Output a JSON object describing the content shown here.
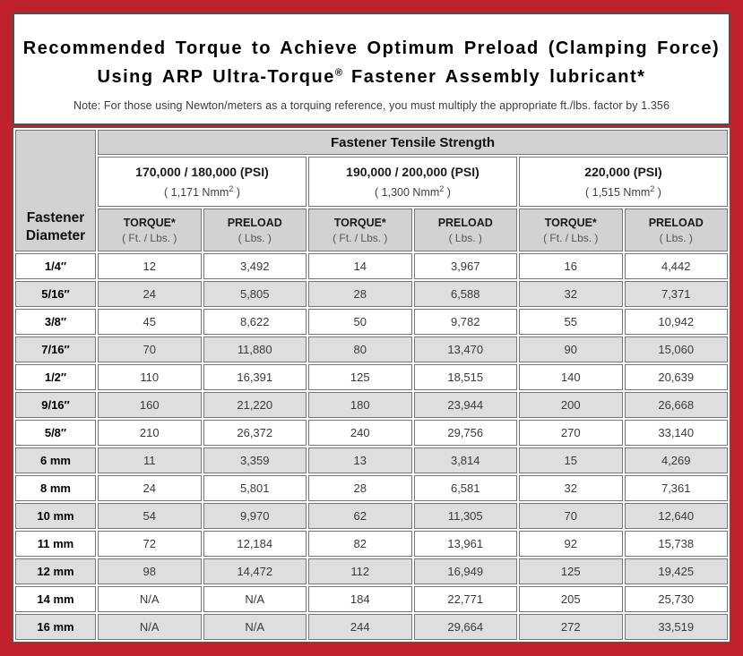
{
  "title": {
    "line1": "Recommended Torque to Achieve Optimum Preload (Clamping Force)",
    "line2_prefix": "Using ARP Ultra-Torque",
    "line2_trademark": "®",
    "line2_suffix": " Fastener Assembly lubricant*",
    "note": "Note: For those using Newton/meters as a torquing reference, you must multiply the appropriate ft./lbs. factor by 1.356"
  },
  "table": {
    "corner_line1": "Fastener",
    "corner_line2": "Diameter",
    "main_header": "Fastener Tensile Strength",
    "strength_groups": [
      {
        "psi": "170,000 / 180,000 (PSI)",
        "nmm_prefix": "( 1,171 Nmm",
        "nmm_sup": "2",
        "nmm_suffix": " )"
      },
      {
        "psi": "190,000 / 200,000 (PSI)",
        "nmm_prefix": "( 1,300 Nmm",
        "nmm_sup": "2",
        "nmm_suffix": " )"
      },
      {
        "psi": "220,000 (PSI)",
        "nmm_prefix": "( 1,515 Nmm",
        "nmm_sup": "2",
        "nmm_suffix": " )"
      }
    ],
    "sub_headers": [
      {
        "label": "TORQUE*",
        "unit": "( Ft. / Lbs. )"
      },
      {
        "label": "PRELOAD",
        "unit": "( Lbs. )"
      },
      {
        "label": "TORQUE*",
        "unit": "( Ft. / Lbs. )"
      },
      {
        "label": "PRELOAD",
        "unit": "( Lbs. )"
      },
      {
        "label": "TORQUE*",
        "unit": "( Ft. / Lbs. )"
      },
      {
        "label": "PRELOAD",
        "unit": "( Lbs. )"
      }
    ],
    "rows": [
      {
        "diameter": "1/4″",
        "values": [
          "12",
          "3,492",
          "14",
          "3,967",
          "16",
          "4,442"
        ]
      },
      {
        "diameter": "5/16″",
        "values": [
          "24",
          "5,805",
          "28",
          "6,588",
          "32",
          "7,371"
        ]
      },
      {
        "diameter": "3/8″",
        "values": [
          "45",
          "8,622",
          "50",
          "9,782",
          "55",
          "10,942"
        ]
      },
      {
        "diameter": "7/16″",
        "values": [
          "70",
          "11,880",
          "80",
          "13,470",
          "90",
          "15,060"
        ]
      },
      {
        "diameter": "1/2″",
        "values": [
          "110",
          "16,391",
          "125",
          "18,515",
          "140",
          "20,639"
        ]
      },
      {
        "diameter": "9/16″",
        "values": [
          "160",
          "21,220",
          "180",
          "23,944",
          "200",
          "26,668"
        ]
      },
      {
        "diameter": "5/8″",
        "values": [
          "210",
          "26,372",
          "240",
          "29,756",
          "270",
          "33,140"
        ]
      },
      {
        "diameter": "6 mm",
        "values": [
          "11",
          "3,359",
          "13",
          "3,814",
          "15",
          "4,269"
        ]
      },
      {
        "diameter": "8 mm",
        "values": [
          "24",
          "5,801",
          "28",
          "6,581",
          "32",
          "7,361"
        ]
      },
      {
        "diameter": "10 mm",
        "values": [
          "54",
          "9,970",
          "62",
          "11,305",
          "70",
          "12,640"
        ]
      },
      {
        "diameter": "11 mm",
        "values": [
          "72",
          "12,184",
          "82",
          "13,961",
          "92",
          "15,738"
        ]
      },
      {
        "diameter": "12 mm",
        "values": [
          "98",
          "14,472",
          "112",
          "16,949",
          "125",
          "19,425"
        ]
      },
      {
        "diameter": "14 mm",
        "values": [
          "N/A",
          "N/A",
          "184",
          "22,771",
          "205",
          "25,730"
        ]
      },
      {
        "diameter": "16 mm",
        "values": [
          "N/A",
          "N/A",
          "244",
          "29,664",
          "272",
          "33,519"
        ]
      }
    ]
  },
  "colors": {
    "frame_red": "#C0212B",
    "header_gray": "#D2D2D2",
    "stripe_gray": "#DEDEDE",
    "border_gray": "#767676",
    "panel_white": "#FFFFFF"
  }
}
